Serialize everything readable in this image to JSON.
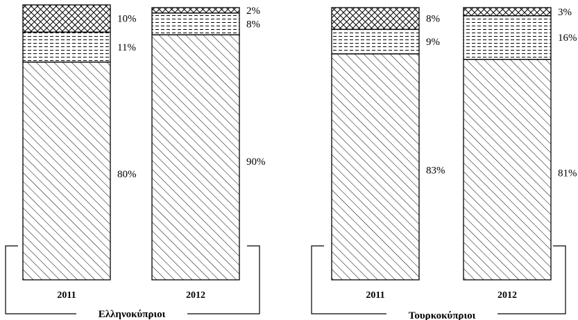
{
  "chart_data": [
    {
      "type": "bar",
      "stacked": true,
      "group_label": "Ελληνοκύπριοι",
      "categories": [
        "2011",
        "2012"
      ],
      "series": [
        {
          "pattern": "diagonal-hatch",
          "values": [
            80,
            90
          ]
        },
        {
          "pattern": "dashed-lines",
          "values": [
            11,
            8
          ]
        },
        {
          "pattern": "cross-hatch",
          "values": [
            10,
            2
          ]
        }
      ],
      "value_labels": [
        [
          "80%",
          "11%",
          "10%"
        ],
        [
          "90%",
          "8%",
          "2%"
        ]
      ]
    },
    {
      "type": "bar",
      "stacked": true,
      "group_label": "Τουρκοκύπριοι",
      "categories": [
        "2011",
        "2012"
      ],
      "series": [
        {
          "pattern": "diagonal-hatch",
          "values": [
            83,
            81
          ]
        },
        {
          "pattern": "dashed-lines",
          "values": [
            9,
            16
          ]
        },
        {
          "pattern": "cross-hatch",
          "values": [
            8,
            3
          ]
        }
      ],
      "value_labels": [
        [
          "83%",
          "9%",
          "8%"
        ],
        [
          "81%",
          "16%",
          "3%"
        ]
      ]
    }
  ]
}
